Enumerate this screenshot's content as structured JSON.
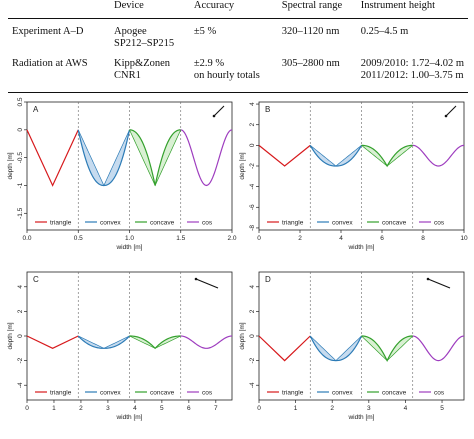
{
  "table": {
    "headers": [
      "",
      "Device",
      "Accuracy",
      "Spectral range",
      "Instrument height"
    ],
    "rows": [
      {
        "label": "Experiment A–D",
        "device": [
          "Apogee",
          "SP212–SP215"
        ],
        "accuracy": [
          "±5 %"
        ],
        "range": "320–1120 nm",
        "height": [
          "0.25–4.5 m"
        ]
      },
      {
        "label": "Radiation at AWS",
        "device": [
          "Kipp&Zonen",
          "CNR1"
        ],
        "accuracy": [
          "±2.9 %",
          "on hourly totals"
        ],
        "range": "305–2800 nm",
        "height": [
          "2009/2010: 1.72–4.02 m",
          "2011/2012: 1.00–3.75 m"
        ]
      }
    ]
  },
  "colors": {
    "triangle": "#d7191c",
    "convex": "#2c7bb6",
    "concave": "#33a02c",
    "cos": "#9e3dbf",
    "convex_fill": "#c6dbef",
    "concave_fill": "#d9f0d3"
  },
  "chart_data": [
    {
      "panel": "A",
      "type": "line",
      "xlabel": "width [m]",
      "ylabel": "depth [m]",
      "xlim": [
        0,
        2
      ],
      "ylim": [
        -1.8,
        0.5
      ],
      "xticks": [
        "0.0",
        "0.5",
        "1.0",
        "1.5",
        "2.0"
      ],
      "yticks": [
        "0.5",
        "0",
        "-0.5",
        "-1",
        "-1.5"
      ],
      "ytick_values": [
        0.5,
        0,
        -0.5,
        -1,
        -1.5
      ],
      "xtick_values": [
        0,
        0.5,
        1,
        1.5,
        2
      ],
      "period": 0.5,
      "depth": 1,
      "dividers": [
        0.5,
        1.0,
        1.5
      ],
      "wind_arrow": "top-right",
      "series": [
        {
          "name": "triangle",
          "x": [
            0,
            0.25,
            0.5
          ],
          "y": [
            0,
            -1,
            0
          ]
        },
        {
          "name": "convex",
          "x_range": [
            0.5,
            1.0
          ]
        },
        {
          "name": "concave",
          "x_range": [
            1.0,
            1.5
          ]
        },
        {
          "name": "cos",
          "x_range": [
            1.5,
            2.0
          ]
        }
      ],
      "legend": [
        "triangle",
        "convex",
        "concave",
        "cos"
      ]
    },
    {
      "panel": "B",
      "type": "line",
      "xlabel": "width [m]",
      "ylabel": "depth [m]",
      "xlim": [
        0,
        10
      ],
      "ylim": [
        -8.2,
        4.2
      ],
      "xticks": [
        "0",
        "2",
        "4",
        "6",
        "8",
        "10"
      ],
      "xtick_values": [
        0,
        2,
        4,
        6,
        8,
        10
      ],
      "yticks": [
        "4",
        "2",
        "0",
        "-2",
        "-4",
        "-6",
        "-8"
      ],
      "ytick_values": [
        4,
        2,
        0,
        -2,
        -4,
        -6,
        -8
      ],
      "period": 2.5,
      "depth": 2,
      "dividers": [
        2.5,
        5.0,
        7.5
      ],
      "wind_arrow": "top-right",
      "series": [
        {
          "name": "triangle",
          "x": [
            0,
            1.25,
            2.5
          ],
          "y": [
            0,
            -2,
            0
          ]
        },
        {
          "name": "convex",
          "x_range": [
            2.5,
            5.0
          ]
        },
        {
          "name": "concave",
          "x_range": [
            5.0,
            7.5
          ]
        },
        {
          "name": "cos",
          "x_range": [
            7.5,
            10.0
          ]
        }
      ],
      "legend": [
        "triangle",
        "convex",
        "concave",
        "cos"
      ]
    },
    {
      "panel": "C",
      "type": "line",
      "xlabel": "width [m]",
      "ylabel": "depth [m]",
      "xlim": [
        0,
        7.6
      ],
      "ylim": [
        -5.2,
        5.2
      ],
      "xticks": [
        "0",
        "1",
        "2",
        "3",
        "4",
        "5",
        "6",
        "7"
      ],
      "xtick_values": [
        0,
        1,
        2,
        3,
        4,
        5,
        6,
        7
      ],
      "yticks": [
        "4",
        "2",
        "0",
        "-2",
        "-4"
      ],
      "ytick_values": [
        4,
        2,
        0,
        -2,
        -4
      ],
      "period": 1.9,
      "depth": 1,
      "dividers": [
        1.9,
        3.8,
        5.7
      ],
      "wind_arrow": "top-left",
      "series": [
        {
          "name": "triangle",
          "x": [
            0,
            0.95,
            1.9
          ],
          "y": [
            0,
            -1,
            0
          ]
        },
        {
          "name": "convex",
          "x_range": [
            1.9,
            3.8
          ]
        },
        {
          "name": "concave",
          "x_range": [
            3.8,
            5.7
          ]
        },
        {
          "name": "cos",
          "x_range": [
            5.7,
            7.6
          ]
        }
      ],
      "legend": [
        "triangle",
        "convex",
        "concave",
        "cos"
      ]
    },
    {
      "panel": "D",
      "type": "line",
      "xlabel": "width [m]",
      "ylabel": "depth [m]",
      "xlim": [
        0,
        5.6
      ],
      "ylim": [
        -5.2,
        5.2
      ],
      "xticks": [
        "0",
        "1",
        "2",
        "3",
        "4",
        "5"
      ],
      "xtick_values": [
        0,
        1,
        2,
        3,
        4,
        5
      ],
      "yticks": [
        "4",
        "2",
        "0",
        "-2",
        "-4"
      ],
      "ytick_values": [
        4,
        2,
        0,
        -2,
        -4
      ],
      "period": 1.4,
      "depth": 2,
      "dividers": [
        1.4,
        2.8,
        4.2
      ],
      "wind_arrow": "top-left",
      "series": [
        {
          "name": "triangle",
          "x": [
            0,
            0.7,
            1.4
          ],
          "y": [
            0,
            -2,
            0
          ]
        },
        {
          "name": "convex",
          "x_range": [
            1.4,
            2.8
          ]
        },
        {
          "name": "concave",
          "x_range": [
            2.8,
            4.2
          ]
        },
        {
          "name": "cos",
          "x_range": [
            4.2,
            5.6
          ]
        }
      ],
      "legend": [
        "triangle",
        "convex",
        "concave",
        "cos"
      ]
    }
  ]
}
